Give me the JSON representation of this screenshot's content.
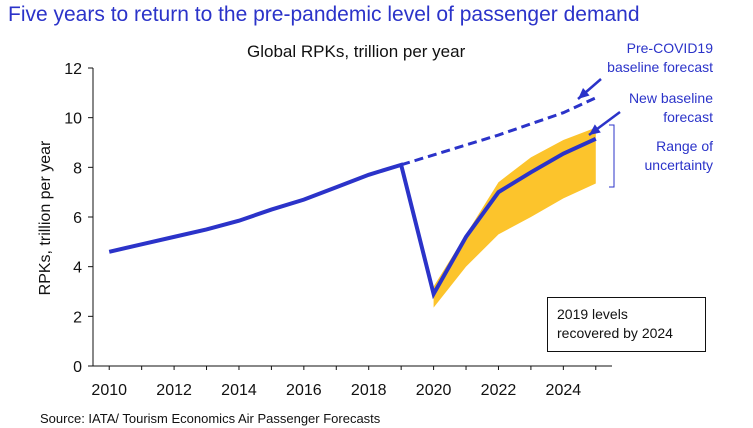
{
  "headline": "Five years to return to the pre-pandemic level of passenger demand",
  "source": "Source: IATA/ Tourism Economics Air Passenger Forecasts",
  "colors": {
    "series": "#2b33c9",
    "band": "#fcc42c",
    "annotation_text": "#2b33c9",
    "axis": "#111111"
  },
  "annotations": {
    "pre_covid": [
      "Pre-COVID19",
      "baseline forecast"
    ],
    "new_baseline": [
      "New baseline",
      "forecast"
    ],
    "range": [
      "Range of",
      "uncertainty"
    ]
  },
  "note_box": [
    "2019 levels",
    "recovered by 2024"
  ],
  "chart_data": {
    "type": "line",
    "title": "Global RPKs, trillion per year",
    "xlabel": "",
    "ylabel": "RPKs, trillion per year",
    "xlim": [
      2009.5,
      2025.5
    ],
    "ylim": [
      0,
      12
    ],
    "xticks": [
      2010,
      2012,
      2014,
      2016,
      2018,
      2020,
      2022,
      2024
    ],
    "yticks": [
      0,
      2,
      4,
      6,
      8,
      10,
      12
    ],
    "grid": false,
    "series": [
      {
        "name": "New baseline forecast",
        "style": "solid",
        "x": [
          2010,
          2011,
          2012,
          2013,
          2014,
          2015,
          2016,
          2017,
          2018,
          2019,
          2020,
          2021,
          2022,
          2023,
          2024,
          2025
        ],
        "y": [
          4.6,
          4.9,
          5.2,
          5.5,
          5.85,
          6.3,
          6.7,
          7.2,
          7.7,
          8.1,
          2.9,
          5.2,
          7.0,
          7.8,
          8.55,
          9.15
        ]
      },
      {
        "name": "Pre-COVID19 baseline forecast",
        "style": "dashed",
        "x": [
          2019,
          2020,
          2021,
          2022,
          2023,
          2024,
          2025
        ],
        "y": [
          8.1,
          8.5,
          8.9,
          9.3,
          9.75,
          10.2,
          10.8
        ]
      }
    ],
    "uncertainty_band": {
      "name": "Range of uncertainty",
      "x": [
        2020,
        2021,
        2022,
        2023,
        2024,
        2025
      ],
      "lower": [
        2.35,
        4.0,
        5.3,
        6.0,
        6.75,
        7.35
      ],
      "upper": [
        3.2,
        5.3,
        7.4,
        8.4,
        9.1,
        9.6
      ]
    }
  }
}
